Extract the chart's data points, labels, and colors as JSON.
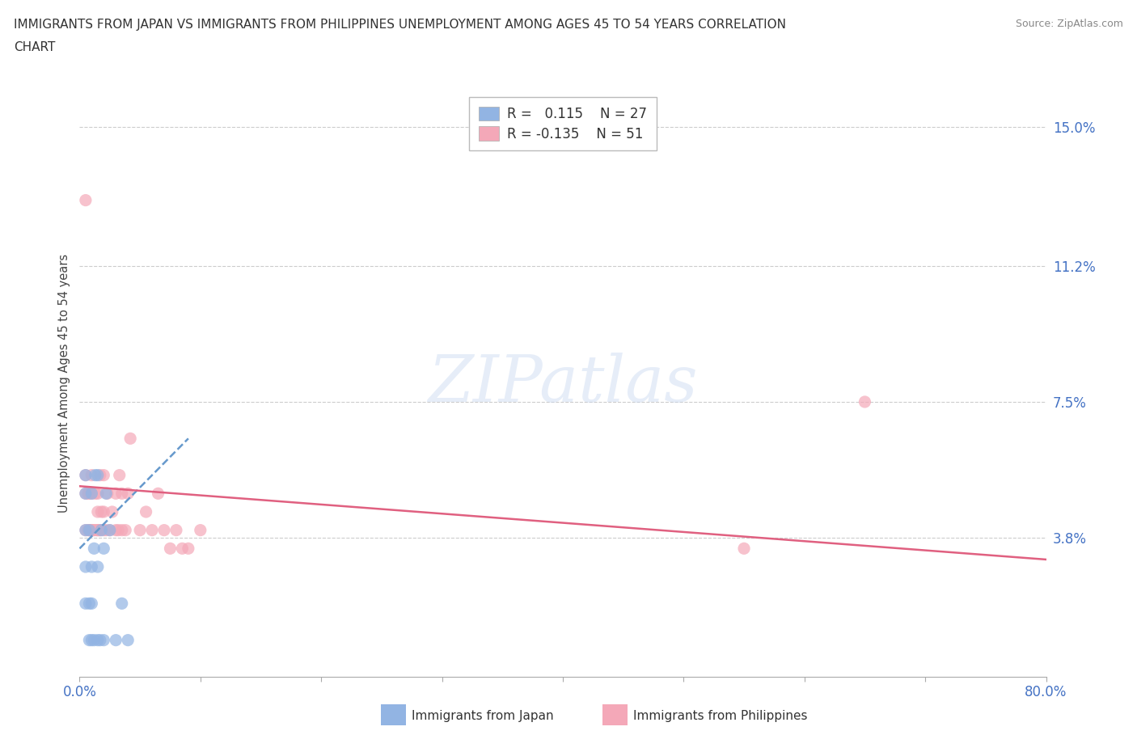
{
  "title_line1": "IMMIGRANTS FROM JAPAN VS IMMIGRANTS FROM PHILIPPINES UNEMPLOYMENT AMONG AGES 45 TO 54 YEARS CORRELATION",
  "title_line2": "CHART",
  "source": "Source: ZipAtlas.com",
  "ylabel": "Unemployment Among Ages 45 to 54 years",
  "xlim": [
    0.0,
    0.8
  ],
  "ylim": [
    0.0,
    0.16
  ],
  "yticks": [
    0.038,
    0.075,
    0.112,
    0.15
  ],
  "ytick_labels": [
    "3.8%",
    "7.5%",
    "11.2%",
    "15.0%"
  ],
  "xticks": [
    0.0,
    0.1,
    0.2,
    0.3,
    0.4,
    0.5,
    0.6,
    0.7,
    0.8
  ],
  "xtick_labels": [
    "0.0%",
    "",
    "",
    "",
    "",
    "",
    "",
    "",
    "80.0%"
  ],
  "japan_color": "#92b4e3",
  "philippines_color": "#f4a8b8",
  "japan_R": 0.115,
  "japan_N": 27,
  "philippines_R": -0.135,
  "philippines_N": 51,
  "japan_trendline_color": "#6699cc",
  "philippines_trendline_color": "#e06080",
  "watermark_text": "ZIPatlas",
  "japan_points_x": [
    0.005,
    0.005,
    0.005,
    0.005,
    0.005,
    0.008,
    0.008,
    0.008,
    0.01,
    0.01,
    0.01,
    0.01,
    0.012,
    0.012,
    0.013,
    0.015,
    0.015,
    0.015,
    0.017,
    0.018,
    0.02,
    0.02,
    0.022,
    0.025,
    0.03,
    0.035,
    0.04
  ],
  "japan_points_y": [
    0.02,
    0.03,
    0.04,
    0.05,
    0.055,
    0.01,
    0.02,
    0.04,
    0.01,
    0.02,
    0.03,
    0.05,
    0.01,
    0.035,
    0.055,
    0.01,
    0.03,
    0.055,
    0.01,
    0.04,
    0.01,
    0.035,
    0.05,
    0.04,
    0.01,
    0.02,
    0.01
  ],
  "philippines_points_x": [
    0.005,
    0.005,
    0.005,
    0.005,
    0.007,
    0.007,
    0.008,
    0.008,
    0.009,
    0.01,
    0.01,
    0.01,
    0.011,
    0.012,
    0.013,
    0.014,
    0.015,
    0.015,
    0.015,
    0.016,
    0.017,
    0.017,
    0.018,
    0.02,
    0.02,
    0.02,
    0.022,
    0.023,
    0.025,
    0.027,
    0.03,
    0.03,
    0.032,
    0.033,
    0.035,
    0.035,
    0.038,
    0.04,
    0.042,
    0.05,
    0.055,
    0.06,
    0.065,
    0.07,
    0.075,
    0.08,
    0.085,
    0.09,
    0.1,
    0.55,
    0.65
  ],
  "philippines_points_y": [
    0.04,
    0.05,
    0.055,
    0.13,
    0.04,
    0.05,
    0.04,
    0.05,
    0.04,
    0.04,
    0.05,
    0.055,
    0.04,
    0.04,
    0.05,
    0.04,
    0.04,
    0.045,
    0.05,
    0.04,
    0.04,
    0.055,
    0.045,
    0.04,
    0.045,
    0.055,
    0.04,
    0.05,
    0.04,
    0.045,
    0.04,
    0.05,
    0.04,
    0.055,
    0.04,
    0.05,
    0.04,
    0.05,
    0.065,
    0.04,
    0.045,
    0.04,
    0.05,
    0.04,
    0.035,
    0.04,
    0.035,
    0.035,
    0.04,
    0.035,
    0.075
  ],
  "japan_trend_x": [
    0.0,
    0.09
  ],
  "japan_trend_y": [
    0.035,
    0.065
  ],
  "phil_trend_x": [
    0.0,
    0.8
  ],
  "phil_trend_y": [
    0.052,
    0.032
  ]
}
